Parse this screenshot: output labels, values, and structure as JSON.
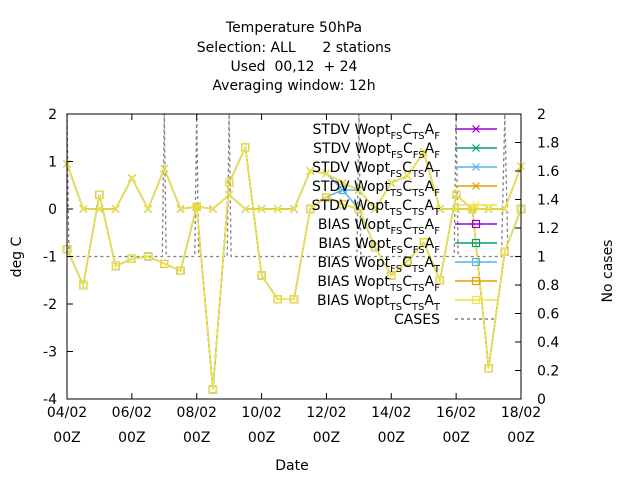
{
  "chart_data": {
    "type": "line",
    "title": [
      "Temperature 50hPa",
      "Selection: ALL      2 stations",
      "Used  00,12  + 24",
      "Averaging window: 12h"
    ],
    "xlabel": "Date",
    "ylabel": "deg C",
    "y2label": "No cases",
    "x_ticks": [
      {
        "day": 0,
        "l1": "04/02",
        "l2": "00Z"
      },
      {
        "day": 2,
        "l1": "06/02",
        "l2": "00Z"
      },
      {
        "day": 4,
        "l1": "08/02",
        "l2": "00Z"
      },
      {
        "day": 6,
        "l1": "10/02",
        "l2": "00Z"
      },
      {
        "day": 8,
        "l1": "12/02",
        "l2": "00Z"
      },
      {
        "day": 10,
        "l1": "14/02",
        "l2": "00Z"
      },
      {
        "day": 12,
        "l1": "16/02",
        "l2": "00Z"
      },
      {
        "day": 14,
        "l1": "18/02",
        "l2": "00Z"
      }
    ],
    "xlim": [
      0,
      14
    ],
    "ylim": [
      -4,
      2
    ],
    "y_ticks": [
      "-4",
      "-3",
      "-2",
      "-1",
      "0",
      "1",
      "2"
    ],
    "y2lim": [
      0,
      2
    ],
    "y2_ticks": [
      "0",
      "0.2",
      "0.4",
      "0.6",
      "0.8",
      "1",
      "1.2",
      "1.4",
      "1.6",
      "1.8",
      "2"
    ],
    "legend_position": "top-right",
    "series": [
      {
        "label": "STDV Wopt",
        "sub1": "FS",
        "mid": "C",
        "sub2": "TS",
        "end": "A",
        "sub3": "F",
        "color": "#9400d3",
        "marker": "x",
        "axis": "y1",
        "x": [
          0,
          0.5,
          1,
          1.5,
          2,
          2.5,
          3,
          3.5,
          4,
          4.5,
          5,
          5.5,
          6,
          6.5,
          7,
          7.5,
          8,
          8.5,
          9,
          9.5,
          10,
          10.5,
          11,
          11.5,
          12,
          12.5,
          13,
          13.5,
          14
        ],
        "y": [
          0.95,
          0,
          0,
          0,
          0.65,
          0,
          0.85,
          0,
          0.05,
          0,
          0.3,
          0,
          0,
          0,
          0,
          0.8,
          0.75,
          0.55,
          0.4,
          0,
          0.55,
          0.7,
          1.2,
          0,
          0,
          0,
          0,
          0,
          0.9
        ]
      },
      {
        "label": "STDV Wopt",
        "sub1": "FS",
        "mid": "C",
        "sub2": "FS",
        "end": "A",
        "sub3": "F",
        "color": "#009e73",
        "marker": "x",
        "axis": "y1",
        "x": [
          0,
          0.5,
          1,
          1.5,
          2,
          2.5,
          3,
          3.5,
          4,
          4.5,
          5,
          5.5,
          6,
          6.5,
          7,
          7.5,
          8,
          8.5,
          9,
          9.5,
          10,
          10.5,
          11,
          11.5,
          12,
          12.5,
          13,
          13.5,
          14
        ],
        "y": [
          0.95,
          0,
          0,
          0,
          0.65,
          0,
          0.85,
          0,
          0.05,
          0,
          0.3,
          0,
          0,
          0,
          0,
          0.8,
          0.75,
          0.55,
          0.4,
          0,
          0.55,
          0.7,
          1.2,
          0,
          0,
          0,
          0,
          0,
          0.9
        ]
      },
      {
        "label": "STDV Wopt",
        "sub1": "FS",
        "mid": "C",
        "sub2": "TS",
        "end": "A",
        "sub3": "T",
        "color": "#56b4e9",
        "marker": "x",
        "axis": "y1",
        "x": [
          0,
          0.5,
          1,
          1.5,
          2,
          2.5,
          3,
          3.5,
          4,
          4.5,
          5,
          5.5,
          6,
          6.5,
          7,
          7.5,
          8,
          8.5,
          9,
          9.5,
          10,
          10.5,
          11,
          11.5,
          12,
          12.5,
          13,
          13.5,
          14
        ],
        "y": [
          0.95,
          0,
          0,
          0,
          0.65,
          0,
          0.85,
          0,
          0.05,
          0,
          0.3,
          0,
          0,
          0,
          0,
          0.8,
          0.75,
          0.4,
          0.4,
          0,
          0.55,
          0.7,
          1.2,
          0,
          0,
          0,
          0,
          0,
          0.9
        ]
      },
      {
        "label": "STDV Wopt",
        "sub1": "TS",
        "mid": "C",
        "sub2": "TS",
        "end": "A",
        "sub3": "F",
        "color": "#e69f00",
        "marker": "x",
        "axis": "y1",
        "x": [
          0,
          0.5,
          1,
          1.5,
          2,
          2.5,
          3,
          3.5,
          4,
          4.5,
          5,
          5.5,
          6,
          6.5,
          7,
          7.5,
          8,
          8.5,
          9,
          9.5,
          10,
          10.5,
          11,
          11.5,
          12,
          12.5,
          13,
          13.5,
          14
        ],
        "y": [
          0.95,
          0,
          0,
          0,
          0.65,
          0,
          0.85,
          0,
          0.05,
          0,
          0.3,
          0,
          0,
          0,
          0,
          0.8,
          0.75,
          0.55,
          0.4,
          0,
          0.55,
          0.7,
          1.2,
          0,
          0,
          0,
          0,
          0,
          0.9
        ]
      },
      {
        "label": "STDV Wopt",
        "sub1": "TS",
        "mid": "C",
        "sub2": "TS",
        "end": "A",
        "sub3": "T",
        "color": "#f0e442",
        "marker": "x",
        "axis": "y1",
        "x": [
          0,
          0.5,
          1,
          1.5,
          2,
          2.5,
          3,
          3.5,
          4,
          4.5,
          5,
          5.5,
          6,
          6.5,
          7,
          7.5,
          8,
          8.5,
          9,
          9.5,
          10,
          10.5,
          11,
          11.5,
          12,
          12.5,
          13,
          13.5,
          14
        ],
        "y": [
          0.95,
          0,
          0,
          0,
          0.65,
          0,
          0.85,
          0,
          0.05,
          0,
          0.3,
          0,
          0,
          0,
          0,
          0.8,
          0.75,
          0.55,
          0.4,
          0,
          0.55,
          0.7,
          1.2,
          0,
          0,
          0,
          0,
          0,
          0.9
        ]
      },
      {
        "label": "BIAS Wopt",
        "sub1": "FS",
        "mid": "C",
        "sub2": "TS",
        "end": "A",
        "sub3": "F",
        "color": "#9400d3",
        "marker": "square",
        "axis": "y1",
        "x": [
          0,
          0.5,
          1,
          1.5,
          2,
          2.5,
          3,
          3.5,
          4,
          4.5,
          5,
          5.5,
          6,
          6.5,
          7,
          7.5,
          8,
          8.5,
          9,
          9.5,
          10,
          10.5,
          11,
          11.5,
          12,
          12.5,
          13,
          13.5,
          14
        ],
        "y": [
          -0.85,
          -1.6,
          0.3,
          -1.2,
          -1.05,
          -1.0,
          -1.15,
          -1.3,
          0.05,
          -3.8,
          0.55,
          1.3,
          -1.4,
          -1.9,
          -1.9,
          0,
          0.25,
          0.1,
          0,
          -0.8,
          -1.4,
          -1.1,
          -0.7,
          -1.5,
          0.3,
          0,
          -3.35,
          -0.9,
          0
        ]
      },
      {
        "label": "BIAS Wopt",
        "sub1": "FS",
        "mid": "C",
        "sub2": "FS",
        "end": "A",
        "sub3": "F",
        "color": "#009e73",
        "marker": "square",
        "axis": "y1",
        "x": [
          0,
          0.5,
          1,
          1.5,
          2,
          2.5,
          3,
          3.5,
          4,
          4.5,
          5,
          5.5,
          6,
          6.5,
          7,
          7.5,
          8,
          8.5,
          9,
          9.5,
          10,
          10.5,
          11,
          11.5,
          12,
          12.5,
          13,
          13.5,
          14
        ],
        "y": [
          -0.85,
          -1.6,
          0.3,
          -1.2,
          -1.05,
          -1.0,
          -1.15,
          -1.3,
          0.05,
          -3.8,
          0.55,
          1.3,
          -1.4,
          -1.9,
          -1.9,
          0,
          0.25,
          0.1,
          0,
          -0.8,
          -1.4,
          -1.1,
          -0.7,
          -1.5,
          0.3,
          0,
          -3.35,
          -0.9,
          0
        ]
      },
      {
        "label": "BIAS Wopt",
        "sub1": "FS",
        "mid": "C",
        "sub2": "TS",
        "end": "A",
        "sub3": "T",
        "color": "#56b4e9",
        "marker": "square",
        "axis": "y1",
        "x": [
          0,
          0.5,
          1,
          1.5,
          2,
          2.5,
          3,
          3.5,
          4,
          4.5,
          5,
          5.5,
          6,
          6.5,
          7,
          7.5,
          8,
          8.5,
          9,
          9.5,
          10,
          10.5,
          11,
          11.5,
          12,
          12.5,
          13,
          13.5,
          14
        ],
        "y": [
          -0.85,
          -1.6,
          0.3,
          -1.2,
          -1.05,
          -1.0,
          -1.15,
          -1.3,
          0.05,
          -3.8,
          0.55,
          1.3,
          -1.4,
          -1.9,
          -1.9,
          0,
          0.25,
          0.4,
          0,
          -0.8,
          -1.4,
          -1.1,
          -0.7,
          -1.5,
          0.3,
          0,
          -3.35,
          -0.9,
          0
        ]
      },
      {
        "label": "BIAS Wopt",
        "sub1": "TS",
        "mid": "C",
        "sub2": "TS",
        "end": "A",
        "sub3": "F",
        "color": "#e69f00",
        "marker": "square",
        "axis": "y1",
        "x": [
          0,
          0.5,
          1,
          1.5,
          2,
          2.5,
          3,
          3.5,
          4,
          4.5,
          5,
          5.5,
          6,
          6.5,
          7,
          7.5,
          8,
          8.5,
          9,
          9.5,
          10,
          10.5,
          11,
          11.5,
          12,
          12.5,
          13,
          13.5,
          14
        ],
        "y": [
          -0.85,
          -1.6,
          0.3,
          -1.2,
          -1.05,
          -1.0,
          -1.15,
          -1.3,
          0.05,
          -3.8,
          0.55,
          1.3,
          -1.4,
          -1.9,
          -1.9,
          0,
          0.25,
          0.1,
          0,
          -0.8,
          -1.4,
          -1.1,
          -0.7,
          -1.5,
          0.3,
          0,
          -3.35,
          -0.9,
          0
        ]
      },
      {
        "label": "BIAS Wopt",
        "sub1": "TS",
        "mid": "C",
        "sub2": "TS",
        "end": "A",
        "sub3": "T",
        "color": "#f0e442",
        "marker": "square",
        "axis": "y1",
        "x": [
          0,
          0.5,
          1,
          1.5,
          2,
          2.5,
          3,
          3.5,
          4,
          4.5,
          5,
          5.5,
          6,
          6.5,
          7,
          7.5,
          8,
          8.5,
          9,
          9.5,
          10,
          10.5,
          11,
          11.5,
          12,
          12.5,
          13,
          13.5,
          14
        ],
        "y": [
          -0.85,
          -1.6,
          0.3,
          -1.2,
          -1.05,
          -1.0,
          -1.15,
          -1.3,
          0.05,
          -3.8,
          0.55,
          1.3,
          -1.4,
          -1.9,
          -1.9,
          0,
          0.25,
          0.1,
          0,
          -0.8,
          -1.4,
          -1.1,
          -0.7,
          -1.5,
          0.3,
          0,
          -3.35,
          -0.9,
          0
        ]
      },
      {
        "label": "CASES",
        "color": "#808080",
        "marker": "none",
        "dash": true,
        "axis": "y2",
        "x": [
          0,
          0.06,
          0.5,
          2.94,
          3,
          3.06,
          3.5,
          3.94,
          4,
          4.06,
          4.5,
          4.94,
          5,
          5.06,
          5.5,
          8.94,
          9,
          9.06,
          9.5,
          11.94,
          12,
          12.06,
          12.5,
          13.4,
          13.5,
          13.6,
          14
        ],
        "y": [
          2,
          1,
          1,
          1,
          2,
          1,
          1,
          1,
          2,
          1,
          1,
          1,
          2,
          1,
          1,
          1,
          2,
          1,
          1,
          1,
          2,
          1,
          1,
          1,
          2,
          1,
          1
        ]
      }
    ]
  }
}
